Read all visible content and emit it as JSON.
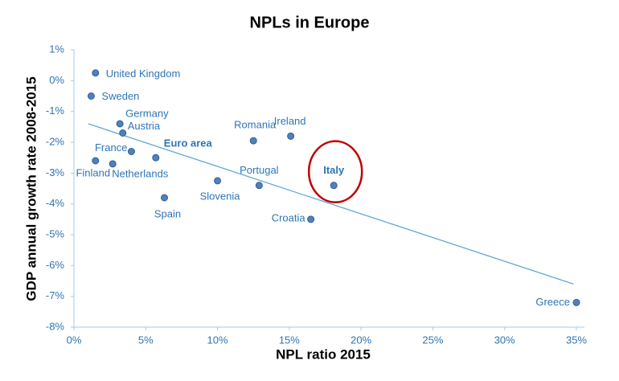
{
  "chart_data": {
    "type": "scatter",
    "title": "NPLs in Europe",
    "x_label": "NPL ratio 2015",
    "y_label": "GDP annual growth rate 2008-2015",
    "color": "#4f81bd",
    "label_color": "#2e75b6",
    "series": [
      {
        "name": null,
        "labels": [
          "United Kingdom",
          "Sweden",
          "Germany",
          "Austria",
          "France",
          "Euro area",
          "Finland",
          "Netherlands",
          "Spain",
          "Slovenia",
          "Romania",
          "Portugal",
          "Ireland",
          "Italy",
          "Croatia",
          "Greece"
        ],
        "x": [
          1.5,
          1.2,
          3.2,
          3.4,
          4.0,
          5.7,
          1.5,
          2.7,
          6.3,
          10.0,
          12.5,
          12.9,
          15.1,
          18.1,
          16.5,
          35.0
        ],
        "values": [
          0.25,
          -0.5,
          -1.4,
          -1.7,
          -2.3,
          -2.5,
          -2.6,
          -2.7,
          -3.8,
          -3.25,
          -1.95,
          -3.4,
          -1.8,
          -3.4,
          -4.5,
          -7.2
        ],
        "bold": [
          false,
          false,
          false,
          false,
          false,
          true,
          false,
          false,
          false,
          false,
          false,
          false,
          false,
          true,
          false,
          false
        ]
      }
    ],
    "highlight": "Italy",
    "trendline": {
      "color": "#5fa8d3",
      "x": [
        1.0,
        34.8
      ],
      "values": [
        -1.4,
        -6.6
      ]
    },
    "xlim": [
      0,
      35
    ],
    "xticks": [
      {
        "value": 0,
        "label": "0%"
      },
      {
        "value": 5,
        "label": "5%"
      },
      {
        "value": 10,
        "label": "10%"
      },
      {
        "value": 15,
        "label": "15%"
      },
      {
        "value": 20,
        "label": "20%"
      },
      {
        "value": 25,
        "label": "25%"
      },
      {
        "value": 30,
        "label": "30%"
      },
      {
        "value": 35,
        "label": "35%"
      }
    ],
    "ylim": [
      -8,
      1
    ],
    "yticks": [
      {
        "value": 1,
        "label": "1%"
      },
      {
        "value": 0,
        "label": "0%"
      },
      {
        "value": -1,
        "label": "-1%"
      },
      {
        "value": -2,
        "label": "-2%"
      },
      {
        "value": -3,
        "label": "-3%"
      },
      {
        "value": -4,
        "label": "-4%"
      },
      {
        "value": -5,
        "label": "-5%"
      },
      {
        "value": -6,
        "label": "-6%"
      },
      {
        "value": -7,
        "label": "-7%"
      },
      {
        "value": -8,
        "label": "-8%"
      }
    ]
  }
}
